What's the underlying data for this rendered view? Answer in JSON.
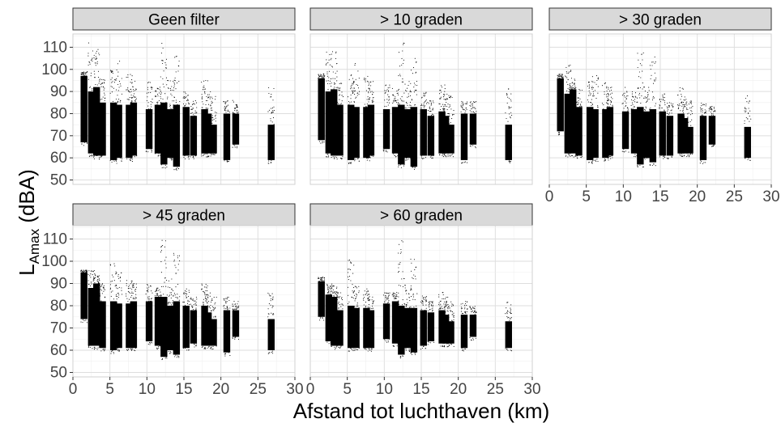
{
  "chart_data": {
    "type": "scatter",
    "xlabel": "Afstand tot luchthaven (km)",
    "ylabel_main": "L",
    "ylabel_sub": "Amax",
    "ylabel_unit": " (dBA)",
    "xlim": [
      0,
      30
    ],
    "ylim": [
      48,
      116
    ],
    "x_ticks": [
      "0",
      "5",
      "10",
      "15",
      "20",
      "25",
      "30"
    ],
    "y_ticks": [
      "50",
      "60",
      "70",
      "80",
      "90",
      "100",
      "110"
    ],
    "grid": true,
    "panels": [
      {
        "title": "Geen filter",
        "clusters": [
          {
            "x": 1.5,
            "y_min": 67,
            "y_max": 97,
            "y_top": 99
          },
          {
            "x": 2.5,
            "y_min": 62,
            "y_max": 90,
            "y_top": 112
          },
          {
            "x": 3.2,
            "y_min": 61,
            "y_max": 92,
            "y_top": 109
          },
          {
            "x": 4.0,
            "y_min": 61,
            "y_max": 85,
            "y_top": 96
          },
          {
            "x": 5.5,
            "y_min": 59,
            "y_max": 85,
            "y_top": 100
          },
          {
            "x": 6.2,
            "y_min": 60,
            "y_max": 84,
            "y_top": 104
          },
          {
            "x": 7.6,
            "y_min": 60,
            "y_max": 84,
            "y_top": 98
          },
          {
            "x": 8.2,
            "y_min": 61,
            "y_max": 85,
            "y_top": 96
          },
          {
            "x": 10.3,
            "y_min": 64,
            "y_max": 82,
            "y_top": 95
          },
          {
            "x": 11.5,
            "y_min": 62,
            "y_max": 84,
            "y_top": 92
          },
          {
            "x": 12.3,
            "y_min": 57,
            "y_max": 85,
            "y_top": 114
          },
          {
            "x": 13.2,
            "y_min": 60,
            "y_max": 82,
            "y_top": 95
          },
          {
            "x": 14.0,
            "y_min": 56,
            "y_max": 84,
            "y_top": 106
          },
          {
            "x": 15.3,
            "y_min": 61,
            "y_max": 83,
            "y_top": 90
          },
          {
            "x": 16.3,
            "y_min": 61,
            "y_max": 79,
            "y_top": 86
          },
          {
            "x": 17.8,
            "y_min": 62,
            "y_max": 82,
            "y_top": 95
          },
          {
            "x": 18.3,
            "y_min": 62,
            "y_max": 80,
            "y_top": 90
          },
          {
            "x": 19.0,
            "y_min": 62,
            "y_max": 75,
            "y_top": 88
          },
          {
            "x": 20.8,
            "y_min": 59,
            "y_max": 80,
            "y_top": 86
          },
          {
            "x": 22.0,
            "y_min": 66,
            "y_max": 80,
            "y_top": 86
          },
          {
            "x": 26.8,
            "y_min": 59,
            "y_max": 75,
            "y_top": 92
          }
        ]
      },
      {
        "title": "> 10 graden",
        "clusters": [
          {
            "x": 1.5,
            "y_min": 68,
            "y_max": 96,
            "y_top": 98
          },
          {
            "x": 2.5,
            "y_min": 62,
            "y_max": 90,
            "y_top": 111
          },
          {
            "x": 3.2,
            "y_min": 61,
            "y_max": 91,
            "y_top": 108
          },
          {
            "x": 4.0,
            "y_min": 61,
            "y_max": 84,
            "y_top": 95
          },
          {
            "x": 5.5,
            "y_min": 59,
            "y_max": 84,
            "y_top": 98
          },
          {
            "x": 6.2,
            "y_min": 60,
            "y_max": 83,
            "y_top": 103
          },
          {
            "x": 7.6,
            "y_min": 60,
            "y_max": 83,
            "y_top": 97
          },
          {
            "x": 8.2,
            "y_min": 61,
            "y_max": 84,
            "y_top": 95
          },
          {
            "x": 10.3,
            "y_min": 64,
            "y_max": 82,
            "y_top": 94
          },
          {
            "x": 11.5,
            "y_min": 62,
            "y_max": 83,
            "y_top": 92
          },
          {
            "x": 12.3,
            "y_min": 57,
            "y_max": 84,
            "y_top": 113
          },
          {
            "x": 13.2,
            "y_min": 60,
            "y_max": 82,
            "y_top": 95
          },
          {
            "x": 14.0,
            "y_min": 56,
            "y_max": 83,
            "y_top": 105
          },
          {
            "x": 15.3,
            "y_min": 61,
            "y_max": 82,
            "y_top": 90
          },
          {
            "x": 16.3,
            "y_min": 61,
            "y_max": 79,
            "y_top": 86
          },
          {
            "x": 17.8,
            "y_min": 62,
            "y_max": 81,
            "y_top": 94
          },
          {
            "x": 18.3,
            "y_min": 62,
            "y_max": 79,
            "y_top": 90
          },
          {
            "x": 19.0,
            "y_min": 62,
            "y_max": 75,
            "y_top": 88
          },
          {
            "x": 20.8,
            "y_min": 59,
            "y_max": 80,
            "y_top": 86
          },
          {
            "x": 22.0,
            "y_min": 66,
            "y_max": 80,
            "y_top": 86
          },
          {
            "x": 26.8,
            "y_min": 59,
            "y_max": 75,
            "y_top": 92
          }
        ]
      },
      {
        "title": "> 30 graden",
        "clusters": [
          {
            "x": 1.5,
            "y_min": 72,
            "y_max": 96,
            "y_top": 98
          },
          {
            "x": 2.5,
            "y_min": 62,
            "y_max": 89,
            "y_top": 102
          },
          {
            "x": 3.2,
            "y_min": 62,
            "y_max": 91,
            "y_top": 96
          },
          {
            "x": 4.0,
            "y_min": 61,
            "y_max": 83,
            "y_top": 92
          },
          {
            "x": 5.5,
            "y_min": 59,
            "y_max": 83,
            "y_top": 95
          },
          {
            "x": 6.2,
            "y_min": 60,
            "y_max": 82,
            "y_top": 98
          },
          {
            "x": 7.6,
            "y_min": 60,
            "y_max": 82,
            "y_top": 94
          },
          {
            "x": 8.2,
            "y_min": 61,
            "y_max": 83,
            "y_top": 92
          },
          {
            "x": 10.3,
            "y_min": 64,
            "y_max": 81,
            "y_top": 92
          },
          {
            "x": 11.5,
            "y_min": 62,
            "y_max": 82,
            "y_top": 90
          },
          {
            "x": 12.3,
            "y_min": 57,
            "y_max": 83,
            "y_top": 108
          },
          {
            "x": 13.2,
            "y_min": 60,
            "y_max": 81,
            "y_top": 93
          },
          {
            "x": 14.0,
            "y_min": 58,
            "y_max": 82,
            "y_top": 106
          },
          {
            "x": 15.3,
            "y_min": 61,
            "y_max": 81,
            "y_top": 89
          },
          {
            "x": 16.3,
            "y_min": 61,
            "y_max": 79,
            "y_top": 85
          },
          {
            "x": 17.8,
            "y_min": 62,
            "y_max": 80,
            "y_top": 92
          },
          {
            "x": 18.3,
            "y_min": 62,
            "y_max": 78,
            "y_top": 88
          },
          {
            "x": 19.0,
            "y_min": 62,
            "y_max": 74,
            "y_top": 86
          },
          {
            "x": 20.8,
            "y_min": 59,
            "y_max": 79,
            "y_top": 85
          },
          {
            "x": 22.0,
            "y_min": 66,
            "y_max": 79,
            "y_top": 84
          },
          {
            "x": 26.8,
            "y_min": 60,
            "y_max": 74,
            "y_top": 88
          }
        ]
      },
      {
        "title": "> 45 graden",
        "clusters": [
          {
            "x": 1.5,
            "y_min": 74,
            "y_max": 95,
            "y_top": 96
          },
          {
            "x": 2.5,
            "y_min": 62,
            "y_max": 88,
            "y_top": 96
          },
          {
            "x": 3.2,
            "y_min": 62,
            "y_max": 90,
            "y_top": 94
          },
          {
            "x": 4.0,
            "y_min": 61,
            "y_max": 82,
            "y_top": 90
          },
          {
            "x": 5.5,
            "y_min": 60,
            "y_max": 82,
            "y_top": 99
          },
          {
            "x": 6.2,
            "y_min": 61,
            "y_max": 81,
            "y_top": 96
          },
          {
            "x": 7.6,
            "y_min": 61,
            "y_max": 81,
            "y_top": 92
          },
          {
            "x": 8.2,
            "y_min": 61,
            "y_max": 82,
            "y_top": 90
          },
          {
            "x": 10.3,
            "y_min": 64,
            "y_max": 82,
            "y_top": 90
          },
          {
            "x": 11.5,
            "y_min": 62,
            "y_max": 84,
            "y_top": 88
          },
          {
            "x": 12.3,
            "y_min": 57,
            "y_max": 84,
            "y_top": 110
          },
          {
            "x": 13.2,
            "y_min": 60,
            "y_max": 80,
            "y_top": 92
          },
          {
            "x": 14.0,
            "y_min": 58,
            "y_max": 82,
            "y_top": 104
          },
          {
            "x": 15.3,
            "y_min": 61,
            "y_max": 80,
            "y_top": 88
          },
          {
            "x": 16.3,
            "y_min": 63,
            "y_max": 78,
            "y_top": 84
          },
          {
            "x": 17.8,
            "y_min": 62,
            "y_max": 80,
            "y_top": 90
          },
          {
            "x": 18.3,
            "y_min": 62,
            "y_max": 77,
            "y_top": 86
          },
          {
            "x": 19.0,
            "y_min": 62,
            "y_max": 74,
            "y_top": 84
          },
          {
            "x": 20.8,
            "y_min": 59,
            "y_max": 78,
            "y_top": 84
          },
          {
            "x": 22.0,
            "y_min": 66,
            "y_max": 78,
            "y_top": 82
          },
          {
            "x": 26.8,
            "y_min": 60,
            "y_max": 74,
            "y_top": 86
          }
        ]
      },
      {
        "title": "> 60 graden",
        "clusters": [
          {
            "x": 1.5,
            "y_min": 75,
            "y_max": 91,
            "y_top": 93
          },
          {
            "x": 2.5,
            "y_min": 64,
            "y_max": 85,
            "y_top": 90
          },
          {
            "x": 3.2,
            "y_min": 62,
            "y_max": 84,
            "y_top": 89
          },
          {
            "x": 4.0,
            "y_min": 62,
            "y_max": 78,
            "y_top": 86
          },
          {
            "x": 5.5,
            "y_min": 61,
            "y_max": 80,
            "y_top": 101
          },
          {
            "x": 6.2,
            "y_min": 61,
            "y_max": 79,
            "y_top": 90
          },
          {
            "x": 7.6,
            "y_min": 61,
            "y_max": 79,
            "y_top": 88
          },
          {
            "x": 8.2,
            "y_min": 61,
            "y_max": 78,
            "y_top": 86
          },
          {
            "x": 10.3,
            "y_min": 65,
            "y_max": 81,
            "y_top": 86
          },
          {
            "x": 11.5,
            "y_min": 63,
            "y_max": 82,
            "y_top": 86
          },
          {
            "x": 12.3,
            "y_min": 58,
            "y_max": 80,
            "y_top": 110
          },
          {
            "x": 13.2,
            "y_min": 61,
            "y_max": 79,
            "y_top": 90
          },
          {
            "x": 14.0,
            "y_min": 59,
            "y_max": 79,
            "y_top": 102
          },
          {
            "x": 15.3,
            "y_min": 62,
            "y_max": 78,
            "y_top": 85
          },
          {
            "x": 16.3,
            "y_min": 64,
            "y_max": 77,
            "y_top": 82
          },
          {
            "x": 17.8,
            "y_min": 63,
            "y_max": 78,
            "y_top": 86
          },
          {
            "x": 18.3,
            "y_min": 63,
            "y_max": 76,
            "y_top": 84
          },
          {
            "x": 19.0,
            "y_min": 63,
            "y_max": 73,
            "y_top": 82
          },
          {
            "x": 20.8,
            "y_min": 61,
            "y_max": 76,
            "y_top": 82
          },
          {
            "x": 22.0,
            "y_min": 66,
            "y_max": 76,
            "y_top": 80
          },
          {
            "x": 26.8,
            "y_min": 61,
            "y_max": 73,
            "y_top": 82
          }
        ]
      }
    ]
  }
}
